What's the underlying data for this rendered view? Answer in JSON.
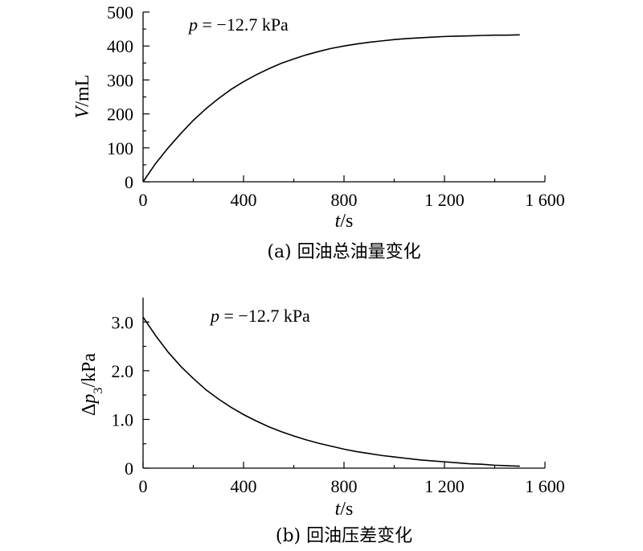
{
  "chart_data": [
    {
      "type": "line",
      "caption": "(a) 回油总油量变化",
      "annotation": {
        "var": "p",
        "text": " = −12.7 kPa"
      },
      "xlabel": {
        "var": "t",
        "unit": "/s"
      },
      "ylabel": {
        "var": "V",
        "unit": "/mL"
      },
      "xlim": [
        0,
        1600
      ],
      "ylim": [
        0,
        500
      ],
      "xticks": [
        {
          "value": 0,
          "label": "0"
        },
        {
          "value": 400,
          "label": "400"
        },
        {
          "value": 800,
          "label": "800"
        },
        {
          "value": 1200,
          "label": "1 200"
        },
        {
          "value": 1600,
          "label": "1 600"
        }
      ],
      "yticks": [
        {
          "value": 0,
          "label": "0"
        },
        {
          "value": 100,
          "label": "100"
        },
        {
          "value": 200,
          "label": "200"
        },
        {
          "value": 300,
          "label": "300"
        },
        {
          "value": 400,
          "label": "400"
        },
        {
          "value": 500,
          "label": "500"
        }
      ],
      "series": [
        {
          "x": [
            0,
            50,
            100,
            150,
            200,
            250,
            300,
            350,
            400,
            450,
            500,
            550,
            600,
            650,
            700,
            750,
            800,
            850,
            900,
            950,
            1000,
            1050,
            1100,
            1150,
            1200,
            1250,
            1300,
            1350,
            1400,
            1450,
            1500
          ],
          "y": [
            0,
            54,
            100,
            142,
            181,
            215,
            245,
            272,
            295,
            315,
            333,
            349,
            362,
            374,
            384,
            393,
            400,
            406,
            411,
            415,
            419,
            422,
            424,
            426,
            428,
            429,
            430,
            431,
            432,
            432,
            433
          ]
        }
      ]
    },
    {
      "type": "line",
      "caption": "(b) 回油压差变化",
      "annotation": {
        "var": "p",
        "text": " = −12.7 kPa"
      },
      "xlabel": {
        "var": "t",
        "unit": "/s"
      },
      "ylabel": {
        "prefix": "Δ",
        "var": "p",
        "sub": "3",
        "unit": "/kPa"
      },
      "xlim": [
        0,
        1600
      ],
      "ylim": [
        0,
        3.5
      ],
      "xticks": [
        {
          "value": 0,
          "label": "0"
        },
        {
          "value": 400,
          "label": "400"
        },
        {
          "value": 800,
          "label": "800"
        },
        {
          "value": 1200,
          "label": "1 200"
        },
        {
          "value": 1600,
          "label": "1 600"
        }
      ],
      "yticks": [
        {
          "value": 0,
          "label": "0"
        },
        {
          "value": 1,
          "label": "1.0"
        },
        {
          "value": 2,
          "label": "2.0"
        },
        {
          "value": 3,
          "label": "3.0"
        }
      ],
      "series": [
        {
          "x": [
            0,
            50,
            100,
            150,
            200,
            250,
            300,
            350,
            400,
            450,
            500,
            550,
            600,
            650,
            700,
            750,
            800,
            850,
            900,
            950,
            1000,
            1050,
            1100,
            1150,
            1200,
            1250,
            1300,
            1350,
            1400,
            1450,
            1500
          ],
          "y": [
            3.1,
            2.72,
            2.38,
            2.09,
            1.84,
            1.61,
            1.42,
            1.25,
            1.1,
            0.97,
            0.85,
            0.75,
            0.66,
            0.58,
            0.51,
            0.45,
            0.39,
            0.34,
            0.3,
            0.26,
            0.23,
            0.2,
            0.17,
            0.15,
            0.13,
            0.11,
            0.09,
            0.08,
            0.06,
            0.05,
            0.04
          ]
        }
      ]
    }
  ]
}
